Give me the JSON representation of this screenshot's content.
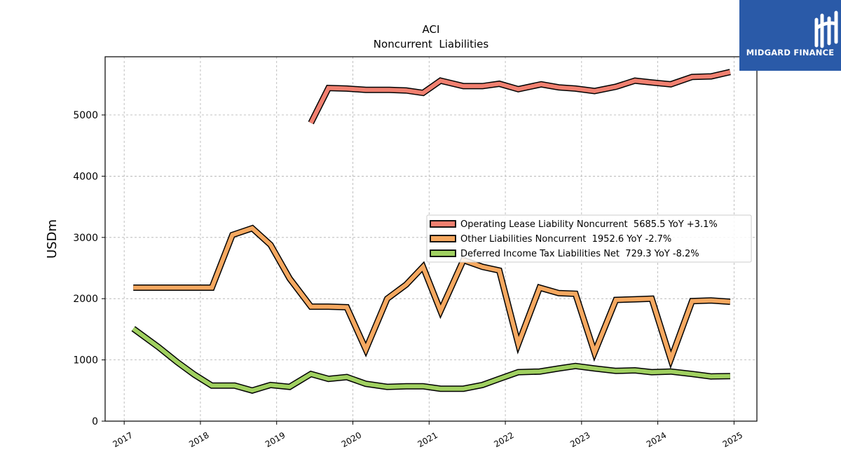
{
  "chart_data": {
    "type": "line",
    "title": "ACI",
    "subtitle": "Noncurrent  Liabilities",
    "ylabel": "USDm",
    "xlabel": "",
    "xlim": [
      2016.75,
      2025.3
    ],
    "ylim": [
      0,
      5950
    ],
    "yticks": [
      0,
      1000,
      2000,
      3000,
      4000,
      5000
    ],
    "xticks": [
      2017,
      2018,
      2019,
      2020,
      2021,
      2022,
      2023,
      2024,
      2025
    ],
    "grid": true,
    "legend_position": "center-right",
    "series": [
      {
        "name": "Operating Lease Liability Noncurrent",
        "legend": "Operating Lease Liability Noncurrent  5685.5 YoY +3.1%",
        "color": "#f08070",
        "x": [
          2019.45,
          2019.68,
          2019.92,
          2020.17,
          2020.48,
          2020.7,
          2020.92,
          2021.15,
          2021.45,
          2021.7,
          2021.92,
          2022.17,
          2022.47,
          2022.7,
          2022.92,
          2023.17,
          2023.45,
          2023.7,
          2023.92,
          2024.17,
          2024.45,
          2024.7,
          2024.95
        ],
        "y": [
          4870,
          5440,
          5430,
          5410,
          5410,
          5400,
          5360,
          5560,
          5470,
          5470,
          5510,
          5420,
          5500,
          5450,
          5430,
          5390,
          5460,
          5560,
          5530,
          5500,
          5620,
          5630,
          5700
        ]
      },
      {
        "name": "Other Liabilities Noncurrent",
        "legend": "Other Liabilities Noncurrent  1952.6 YoY -2.7%",
        "color": "#f5a860",
        "x": [
          2017.12,
          2017.45,
          2017.7,
          2017.92,
          2018.15,
          2018.42,
          2018.68,
          2018.92,
          2019.17,
          2019.45,
          2019.68,
          2019.92,
          2020.17,
          2020.45,
          2020.7,
          2020.92,
          2021.15,
          2021.45,
          2021.7,
          2021.92,
          2022.17,
          2022.45,
          2022.7,
          2022.92,
          2023.17,
          2023.45,
          2023.7,
          2023.92,
          2024.17,
          2024.45,
          2024.7,
          2024.95
        ],
        "y": [
          2180,
          2180,
          2180,
          2180,
          2180,
          3040,
          3150,
          2880,
          2330,
          1870,
          1870,
          1860,
          1170,
          2000,
          2230,
          2520,
          1800,
          2630,
          2520,
          2460,
          1260,
          2180,
          2090,
          2080,
          1120,
          1980,
          1990,
          2000,
          1010,
          1960,
          1970,
          1950
        ]
      },
      {
        "name": "Deferred Income Tax Liabilities Net",
        "legend": "Deferred Income Tax Liabilities Net  729.3 YoY -8.2%",
        "color": "#a0d060",
        "x": [
          2017.12,
          2017.45,
          2017.7,
          2017.92,
          2018.15,
          2018.45,
          2018.68,
          2018.92,
          2019.17,
          2019.45,
          2019.68,
          2019.92,
          2020.17,
          2020.45,
          2020.7,
          2020.92,
          2021.15,
          2021.45,
          2021.7,
          2021.92,
          2022.17,
          2022.45,
          2022.7,
          2022.92,
          2023.17,
          2023.45,
          2023.7,
          2023.92,
          2024.17,
          2024.45,
          2024.7,
          2024.95
        ],
        "y": [
          1510,
          1210,
          960,
          760,
          580,
          580,
          500,
          590,
          560,
          770,
          690,
          720,
          610,
          560,
          570,
          570,
          530,
          530,
          590,
          690,
          800,
          810,
          860,
          900,
          860,
          820,
          830,
          800,
          810,
          770,
          730,
          735
        ]
      }
    ]
  },
  "logo": {
    "text": "MIDGARD FINANCE"
  }
}
